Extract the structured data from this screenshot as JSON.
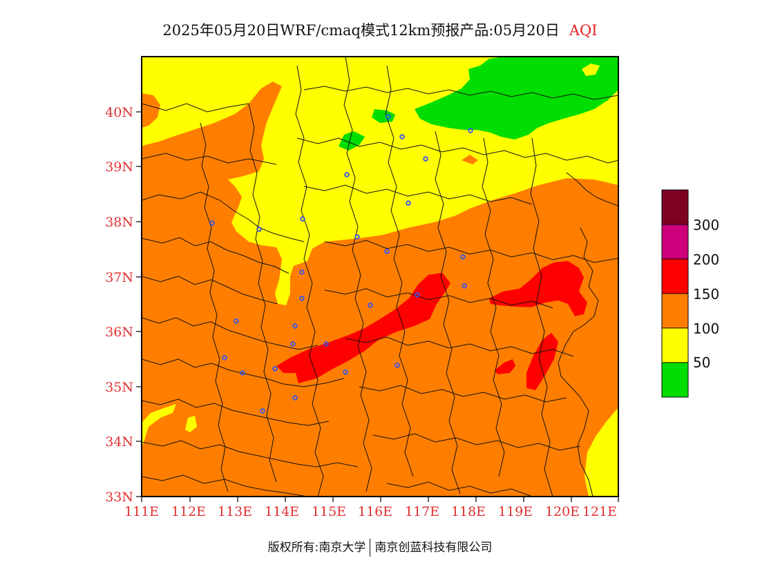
{
  "header": {
    "title": "2025年05月20日WRF/cmaq模式12km预报产品:05月20日",
    "product": "AQI"
  },
  "axes": {
    "lat_ticks": [
      "33N",
      "34N",
      "35N",
      "36N",
      "37N",
      "38N",
      "39N",
      "40N"
    ],
    "lon_ticks": [
      "111E",
      "112E",
      "113E",
      "114E",
      "115E",
      "116E",
      "117E",
      "118E",
      "119E",
      "120E",
      "121E"
    ]
  },
  "legend": {
    "bins": [
      {
        "color": "#00dd00",
        "label": "50"
      },
      {
        "color": "#ffff00",
        "label": "100"
      },
      {
        "color": "#ff7e00",
        "label": "150"
      },
      {
        "color": "#ff0000",
        "label": "200"
      },
      {
        "color": "#cc007a",
        "label": "300"
      },
      {
        "color": "#7e0023",
        "label": ""
      }
    ]
  },
  "footer": {
    "copyright": "版权所有:南京大学",
    "company": "南京创蓝科技有限公司"
  },
  "colors": {
    "good": "#00dd00",
    "moderate": "#ffff00",
    "unhealthy_sensitive": "#ff7e00",
    "unhealthy": "#ff0000",
    "very_unhealthy": "#cc007a",
    "hazardous": "#7e0023",
    "city_marker": "#3355ee",
    "axis_label": "#e03030"
  }
}
